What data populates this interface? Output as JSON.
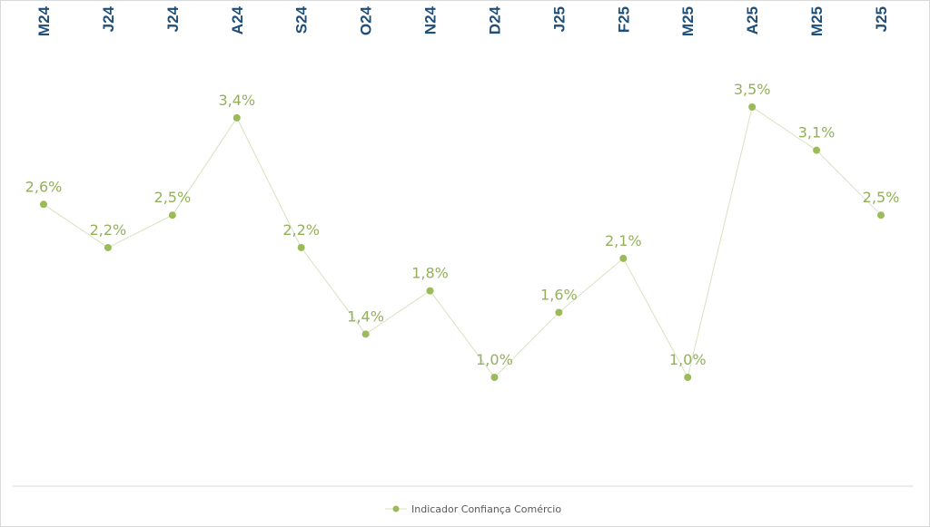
{
  "chart_data": {
    "type": "line",
    "categories": [
      "M24",
      "J24",
      "J24",
      "A24",
      "S24",
      "O24",
      "N24",
      "D24",
      "J25",
      "F25",
      "M25",
      "A25",
      "M25",
      "J25"
    ],
    "series": [
      {
        "name": "Indicador Confiança Comércio",
        "values": [
          2.6,
          2.2,
          2.5,
          3.4,
          2.2,
          1.4,
          1.8,
          1.0,
          1.6,
          2.1,
          1.0,
          3.5,
          3.1,
          2.5
        ],
        "labels": [
          "2,6%",
          "2,2%",
          "2,5%",
          "3,4%",
          "2,2%",
          "1,4%",
          "1,8%",
          "1,0%",
          "1,6%",
          "2,1%",
          "1,0%",
          "3,5%",
          "3,1%",
          "2,5%"
        ]
      }
    ],
    "title": "",
    "xlabel": "",
    "ylabel": "",
    "x_axis_position": "top",
    "y_axis_visible": false,
    "grid": false,
    "legend_position": "bottom",
    "colors": {
      "series": "#9bbb59",
      "line": "#d6e3c0",
      "tick_labels": "#1f4e79",
      "data_labels": "#93b05a"
    }
  }
}
